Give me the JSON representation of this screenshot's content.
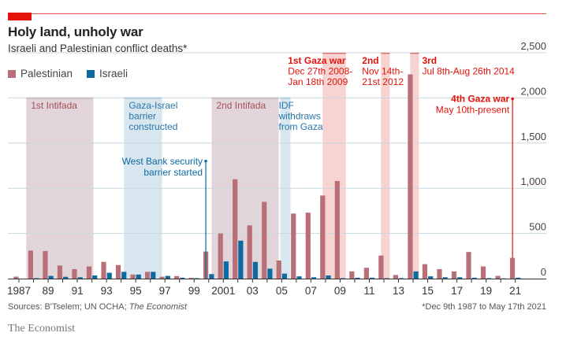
{
  "header": {
    "title": "Holy land, unholy war",
    "subtitle": "Israeli and Palestinian conflict deaths*"
  },
  "legend": [
    {
      "label": "Palestinian",
      "color": "#b86f77"
    },
    {
      "label": "Israeli",
      "color": "#0d6aa1"
    }
  ],
  "footer": {
    "source_prefix": "Sources: B'Tselem; UN OCHA; ",
    "source_italic": "The Economist",
    "footnote": "*Dec 9th 1987 to May 17th 2021",
    "brand": "The Economist"
  },
  "colors": {
    "accent_red": "#e3120b",
    "palestinian": "#b86f77",
    "israeli": "#0d6aa1",
    "intifada_band": "#e2d5d9",
    "blue_band": "#d8e6ef",
    "war_band": "#f7d3d1",
    "gridline": "#c9d7e0"
  },
  "chart_data": {
    "type": "bar",
    "title": "Holy land, unholy war",
    "subtitle": "Israeli and Palestinian conflict deaths*",
    "xlabel": "",
    "ylabel": "",
    "ylim": [
      0,
      2500
    ],
    "yticks": [
      0,
      500,
      1000,
      1500,
      2000,
      2500
    ],
    "ytick_labels": [
      "0",
      "500",
      "1,000",
      "1,500",
      "2,000",
      "2,500"
    ],
    "y_axis_side": "right",
    "grid": true,
    "legend_position": "top-left",
    "categories": [
      1987,
      1988,
      1989,
      1990,
      1991,
      1992,
      1993,
      1994,
      1995,
      1996,
      1997,
      1998,
      1999,
      2000,
      2001,
      2002,
      2003,
      2004,
      2005,
      2006,
      2007,
      2008,
      2009,
      2010,
      2011,
      2012,
      2013,
      2014,
      2015,
      2016,
      2017,
      2018,
      2019,
      2020,
      2021
    ],
    "xtick_labels": [
      {
        "year": 1987,
        "label": "1987"
      },
      {
        "year": 1989,
        "label": "89"
      },
      {
        "year": 1991,
        "label": "91"
      },
      {
        "year": 1993,
        "label": "93"
      },
      {
        "year": 1995,
        "label": "95"
      },
      {
        "year": 1997,
        "label": "97"
      },
      {
        "year": 1999,
        "label": "99"
      },
      {
        "year": 2001,
        "label": "2001"
      },
      {
        "year": 2003,
        "label": "03"
      },
      {
        "year": 2005,
        "label": "05"
      },
      {
        "year": 2007,
        "label": "07"
      },
      {
        "year": 2009,
        "label": "09"
      },
      {
        "year": 2011,
        "label": "11"
      },
      {
        "year": 2013,
        "label": "13"
      },
      {
        "year": 2015,
        "label": "15"
      },
      {
        "year": 2017,
        "label": "17"
      },
      {
        "year": 2019,
        "label": "19"
      },
      {
        "year": 2021,
        "label": "21"
      }
    ],
    "series": [
      {
        "name": "Palestinian",
        "color": "#b86f77",
        "values": [
          22,
          310,
          305,
          145,
          105,
          135,
          185,
          150,
          45,
          75,
          21,
          28,
          9,
          300,
          500,
          1100,
          590,
          850,
          200,
          720,
          730,
          920,
          1080,
          80,
          120,
          255,
          40,
          2260,
          160,
          105,
          80,
          295,
          135,
          30,
          230
        ]
      },
      {
        "name": "Israeli",
        "color": "#0d6aa1",
        "values": [
          0,
          5,
          30,
          20,
          15,
          35,
          65,
          75,
          45,
          75,
          30,
          10,
          5,
          50,
          190,
          420,
          185,
          110,
          55,
          25,
          15,
          35,
          5,
          10,
          10,
          5,
          5,
          80,
          25,
          15,
          15,
          10,
          5,
          3,
          10
        ]
      }
    ],
    "bands": [
      {
        "name": "1st Intifada",
        "kind": "intifada",
        "start": 1987.5,
        "end": 1992.1,
        "label_lines": [
          "1st Intifada"
        ]
      },
      {
        "name": "Gaza-Israel barrier constructed",
        "kind": "blue",
        "start": 1994.2,
        "end": 1996.8,
        "label_lines": [
          "Gaza-Israel",
          "barrier",
          "constructed"
        ]
      },
      {
        "name": "2nd Intifada",
        "kind": "intifada",
        "start": 2000.2,
        "end": 2004.8,
        "label_lines": [
          "2nd Intifada"
        ]
      },
      {
        "name": "IDF withdraws from Gaza",
        "kind": "blue",
        "start": 2004.9,
        "end": 2005.6,
        "label_lines": [
          "IDF",
          "withdraws",
          "from Gaza"
        ]
      },
      {
        "name": "1st Gaza war",
        "kind": "war",
        "start": 2007.8,
        "end": 2009.4,
        "label_lines": [
          "1st Gaza war",
          "Dec 27th 2008-",
          "Jan 18th 2009"
        ]
      },
      {
        "name": "2nd Gaza war",
        "kind": "war",
        "start": 2011.8,
        "end": 2012.4,
        "label_lines": [
          "2nd",
          "Nov 14th-",
          "21st 2012"
        ]
      },
      {
        "name": "3rd Gaza war",
        "kind": "war",
        "start": 2013.8,
        "end": 2014.4,
        "label_lines": [
          "3rd",
          "Jul 8th-Aug 26th 2014"
        ]
      }
    ],
    "annotations": [
      {
        "name": "West Bank security barrier started",
        "year": 2000.0,
        "value": 1300,
        "label_lines": [
          "West Bank security",
          "barrier started"
        ],
        "color": "#0d6aa1"
      },
      {
        "name": "4th Gaza war",
        "year": 2021.0,
        "value": 1990,
        "label_lines": [
          "4th Gaza war",
          "May 10th-present"
        ],
        "color": "#e3120b"
      }
    ]
  }
}
